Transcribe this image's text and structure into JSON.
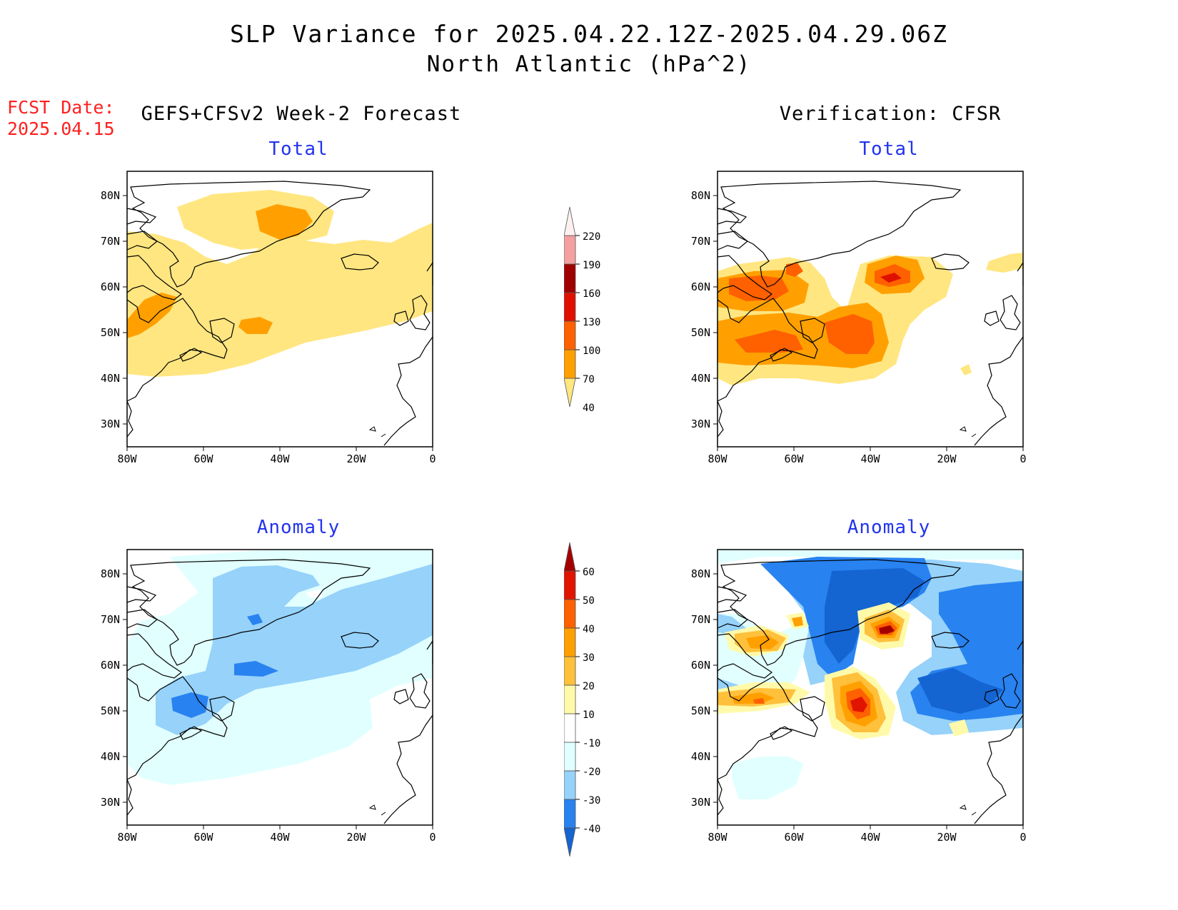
{
  "title": {
    "line1": "SLP Variance for 2025.04.22.12Z-2025.04.29.06Z",
    "line2": "North Atlantic (hPa^2)"
  },
  "fcst_date": {
    "label": "FCST Date:",
    "value": "2025.04.15"
  },
  "left_header": "GEFS+CFSv2 Week-2 Forecast",
  "right_header": "Verification: CFSR",
  "panels": {
    "top_left_title": "Total",
    "top_right_title": "Total",
    "bottom_left_title": "Anomaly",
    "bottom_right_title": "Anomaly"
  },
  "map_axes": {
    "lon_labels": [
      "80W",
      "60W",
      "40W",
      "20W",
      "0"
    ],
    "lat_labels": [
      "80N",
      "70N",
      "60N",
      "50N",
      "40N",
      "30N"
    ]
  },
  "colorbar_total": {
    "levels": [
      "40",
      "70",
      "100",
      "130",
      "160",
      "190",
      "220"
    ],
    "colors": [
      "#ffe680",
      "#ffa000",
      "#ff6000",
      "#e01000",
      "#a00000",
      "#f4a0a0",
      "#fff0f0"
    ]
  },
  "colorbar_anomaly": {
    "levels": [
      "-40",
      "-30",
      "-20",
      "-10",
      "10",
      "20",
      "30",
      "40",
      "50",
      "60"
    ],
    "colors": [
      "#1464d2",
      "#2882f0",
      "#96d2fa",
      "#e1ffff",
      "#ffffff",
      "#fffaaa",
      "#ffc03c",
      "#ffa000",
      "#ff6000",
      "#e11400",
      "#a50000"
    ]
  },
  "colors": {
    "total_40_70": "#ffe680",
    "total_70_100": "#ffa000",
    "total_100_130": "#ff6000",
    "total_130_160": "#e01000",
    "anom_m10_m20": "#e1ffff",
    "anom_m20_m30": "#96d2fa",
    "anom_m30_m40": "#2882f0",
    "anom_lt_m40": "#1464d2",
    "anom_10_20": "#fffaaa",
    "anom_20_30": "#ffc03c",
    "anom_30_40": "#ffa000",
    "anom_40_50": "#ff6000",
    "anom_50_60": "#e11400",
    "anom_gt_60": "#a50000",
    "header_red": "#ff2020",
    "subtitle_blue": "#2233ee"
  }
}
